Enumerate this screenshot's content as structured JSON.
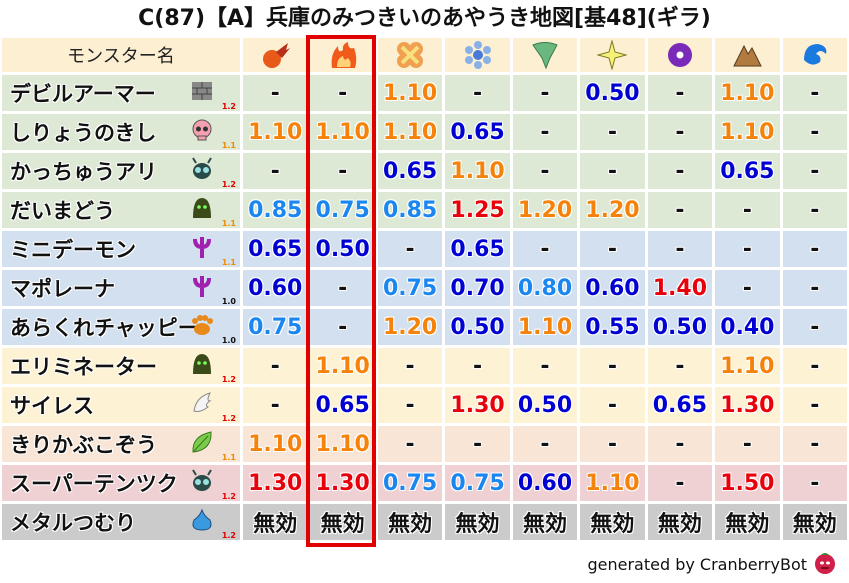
{
  "title": "C(87)【A】兵庫のみつきいのあやうき地図[基48](ギラ)",
  "header": {
    "name_label": "モンスター名",
    "columns": [
      {
        "icon": "meteor-icon"
      },
      {
        "icon": "flame-icon",
        "highlighted": true
      },
      {
        "icon": "explosion-icon"
      },
      {
        "icon": "ice-icon"
      },
      {
        "icon": "wind-icon"
      },
      {
        "icon": "light-icon"
      },
      {
        "icon": "dark-icon"
      },
      {
        "icon": "earth-icon"
      },
      {
        "icon": "water-icon"
      }
    ]
  },
  "colors": {
    "row_green": "#dde8d5",
    "row_blue": "#d3e0f0",
    "row_cream": "#fdf2d3",
    "row_peach": "#f8e5d5",
    "row_pink": "#efd0d3",
    "row_gray": "#cbcbcb",
    "value_red": "#e8000b",
    "value_orange": "#f5820a",
    "value_lightblue": "#1a86f0",
    "value_darkblue": "#0000d2",
    "value_neutral": "#111111",
    "highlight_border": "#e00000",
    "badge_1.2": "#e00000",
    "badge_1.1": "#f08a00",
    "badge_1.0": "#111111"
  },
  "rows": [
    {
      "name": "デビルアーマー",
      "icon": "brick-icon",
      "badge": "1.2",
      "bg": "g",
      "values": [
        "-",
        "-",
        "1.10",
        "-",
        "-",
        "0.50",
        "-",
        "1.10",
        "-"
      ]
    },
    {
      "name": "しりょうのきし",
      "icon": "skull-icon",
      "badge": "1.1",
      "bg": "g",
      "values": [
        "1.10",
        "1.10",
        "1.10",
        "0.65",
        "-",
        "-",
        "-",
        "1.10",
        "-"
      ]
    },
    {
      "name": "かっちゅうアリ",
      "icon": "insect-icon",
      "badge": "1.2",
      "bg": "g",
      "values": [
        "-",
        "-",
        "0.65",
        "1.10",
        "-",
        "-",
        "-",
        "0.65",
        "-"
      ]
    },
    {
      "name": "だいまどう",
      "icon": "slime-ghost-icon",
      "badge": "1.1",
      "bg": "g",
      "values": [
        "0.85",
        "0.75",
        "0.85",
        "1.25",
        "1.20",
        "1.20",
        "-",
        "-",
        "-"
      ]
    },
    {
      "name": "ミニデーモン",
      "icon": "demon-trident-icon",
      "badge": "1.1",
      "bg": "b",
      "values": [
        "0.65",
        "0.50",
        "-",
        "0.65",
        "-",
        "-",
        "-",
        "-",
        "-"
      ]
    },
    {
      "name": "マポレーナ",
      "icon": "demon-trident-icon",
      "badge": "1.0",
      "bg": "b",
      "values": [
        "0.60",
        "-",
        "0.75",
        "0.70",
        "0.80",
        "0.60",
        "1.40",
        "-",
        "-"
      ]
    },
    {
      "name": "あらくれチャッピー",
      "icon": "paw-icon",
      "badge": "1.0",
      "bg": "b",
      "values": [
        "0.75",
        "-",
        "1.20",
        "0.50",
        "1.10",
        "0.55",
        "0.50",
        "0.40",
        "-"
      ]
    },
    {
      "name": "エリミネーター",
      "icon": "slime-ghost-icon",
      "badge": "1.2",
      "bg": "c",
      "values": [
        "-",
        "1.10",
        "-",
        "-",
        "-",
        "-",
        "-",
        "1.10",
        "-"
      ]
    },
    {
      "name": "サイレス",
      "icon": "wing-icon",
      "badge": "1.2",
      "bg": "c",
      "values": [
        "-",
        "0.65",
        "-",
        "1.30",
        "0.50",
        "-",
        "0.65",
        "1.30",
        "-"
      ]
    },
    {
      "name": "きりかぶこぞう",
      "icon": "leaf-icon",
      "badge": "1.1",
      "bg": "p",
      "values": [
        "1.10",
        "1.10",
        "-",
        "-",
        "-",
        "-",
        "-",
        "-",
        "-"
      ]
    },
    {
      "name": "スーパーテンツク",
      "icon": "insect-icon",
      "badge": "1.2",
      "bg": "k",
      "values": [
        "1.30",
        "1.30",
        "0.75",
        "0.75",
        "0.60",
        "1.10",
        "-",
        "1.50",
        "-"
      ]
    },
    {
      "name": "メタルつむり",
      "icon": "slime-drop-icon",
      "badge": "1.2",
      "bg": "s",
      "values": [
        "無効",
        "無効",
        "無効",
        "無効",
        "無効",
        "無効",
        "無効",
        "無効",
        "無効"
      ]
    }
  ],
  "footer": {
    "text": "generated by CranberryBot",
    "icon": "cranberry-bot-icon"
  }
}
